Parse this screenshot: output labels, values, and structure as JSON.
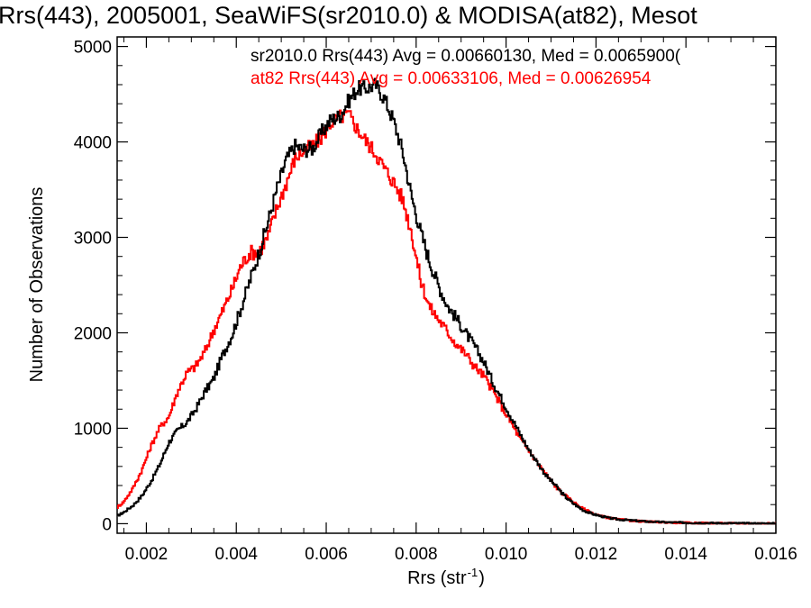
{
  "chart_data": {
    "type": "line",
    "title": "Rrs(443), 2005001, SeaWiFS(sr2010.0) & MODISA(at82), Mesot",
    "xlabel": "Rrs (str",
    "xlabel_sup": "-1",
    "xlabel_close": ")",
    "ylabel": "Number of Observations",
    "xlim": [
      0.00135,
      0.016
    ],
    "ylim": [
      -100,
      5100
    ],
    "xticks": [
      {
        "v": 0.002,
        "label": "0.002"
      },
      {
        "v": 0.004,
        "label": "0.004"
      },
      {
        "v": 0.006,
        "label": "0.006"
      },
      {
        "v": 0.008,
        "label": "0.008"
      },
      {
        "v": 0.01,
        "label": "0.010"
      },
      {
        "v": 0.012,
        "label": "0.012"
      },
      {
        "v": 0.014,
        "label": "0.014"
      },
      {
        "v": 0.016,
        "label": "0.016"
      }
    ],
    "yticks": [
      {
        "v": 0,
        "label": "0"
      },
      {
        "v": 1000,
        "label": "1000"
      },
      {
        "v": 2000,
        "label": "2000"
      },
      {
        "v": 3000,
        "label": "3000"
      },
      {
        "v": 4000,
        "label": "4000"
      },
      {
        "v": 5000,
        "label": "5000"
      }
    ],
    "annotations": [
      {
        "text": "sr2010.0 Rrs(443) Avg = 0.00660130, Med = 0.0065900(",
        "color": "#000000"
      },
      {
        "text": "at82 Rrs(443) Avg = 0.00633106, Med = 0.00626954",
        "color": "#ff0000"
      }
    ],
    "series": [
      {
        "color": "#000000",
        "x": [
          0.00135,
          0.0015,
          0.0017,
          0.0019,
          0.0021,
          0.0023,
          0.0025,
          0.0027,
          0.0029,
          0.0031,
          0.0033,
          0.0035,
          0.0037,
          0.0039,
          0.0041,
          0.0043,
          0.0045,
          0.0047,
          0.0049,
          0.0051,
          0.0053,
          0.0055,
          0.0057,
          0.0059,
          0.0061,
          0.0063,
          0.0065,
          0.0067,
          0.0069,
          0.0071,
          0.0073,
          0.0075,
          0.0077,
          0.0079,
          0.0081,
          0.0083,
          0.0085,
          0.0087,
          0.0089,
          0.0091,
          0.0093,
          0.0095,
          0.0097,
          0.0099,
          0.0101,
          0.0103,
          0.0105,
          0.0107,
          0.0109,
          0.0111,
          0.0113,
          0.0115,
          0.0117,
          0.0119,
          0.0121,
          0.0123,
          0.0125,
          0.0127,
          0.0129,
          0.0131,
          0.0133,
          0.0135,
          0.0137,
          0.0139,
          0.0141,
          0.0143,
          0.0145,
          0.0147,
          0.0149,
          0.0151,
          0.0153,
          0.0155,
          0.0157,
          0.0159,
          0.016
        ],
        "values": [
          80,
          120,
          190,
          290,
          440,
          620,
          850,
          980,
          1060,
          1200,
          1380,
          1520,
          1770,
          1970,
          2250,
          2540,
          2830,
          3150,
          3500,
          3800,
          3960,
          3920,
          3930,
          4100,
          4230,
          4270,
          4430,
          4560,
          4560,
          4600,
          4450,
          4220,
          3900,
          3430,
          3060,
          2750,
          2490,
          2280,
          2150,
          2000,
          1860,
          1700,
          1490,
          1310,
          1130,
          950,
          780,
          640,
          500,
          400,
          290,
          210,
          145,
          105,
          80,
          58,
          45,
          37,
          30,
          24,
          20,
          16,
          13,
          11,
          9,
          8,
          7,
          6,
          5,
          4,
          4,
          3,
          3,
          2,
          2
        ]
      },
      {
        "color": "#ff0000",
        "x": [
          0.00135,
          0.0015,
          0.0017,
          0.0019,
          0.0021,
          0.0023,
          0.0025,
          0.0027,
          0.0029,
          0.0031,
          0.0033,
          0.0035,
          0.0037,
          0.0039,
          0.0041,
          0.0043,
          0.0045,
          0.0047,
          0.0049,
          0.0051,
          0.0053,
          0.0055,
          0.0057,
          0.0059,
          0.0061,
          0.0063,
          0.0065,
          0.0067,
          0.0069,
          0.0071,
          0.0073,
          0.0075,
          0.0077,
          0.0079,
          0.0081,
          0.0083,
          0.0085,
          0.0087,
          0.0089,
          0.0091,
          0.0093,
          0.0095,
          0.0097,
          0.0099,
          0.0101,
          0.0103,
          0.0105,
          0.0107,
          0.0109,
          0.0111,
          0.0113,
          0.0115,
          0.0117,
          0.0119,
          0.0121,
          0.0123,
          0.0125,
          0.0127,
          0.0129,
          0.0131,
          0.0133,
          0.0135,
          0.0137,
          0.0139,
          0.0141,
          0.0143,
          0.0145,
          0.0147,
          0.0149,
          0.0151,
          0.0153,
          0.0155,
          0.0157,
          0.0159,
          0.016
        ],
        "values": [
          170,
          230,
          370,
          560,
          810,
          1010,
          1120,
          1390,
          1580,
          1650,
          1800,
          2030,
          2230,
          2450,
          2700,
          2840,
          2850,
          3000,
          3300,
          3550,
          3820,
          3910,
          3960,
          4050,
          4200,
          4260,
          4290,
          4130,
          4000,
          3880,
          3720,
          3580,
          3400,
          3050,
          2550,
          2270,
          2140,
          2010,
          1880,
          1780,
          1650,
          1550,
          1400,
          1230,
          1070,
          900,
          770,
          640,
          510,
          390,
          300,
          225,
          160,
          115,
          80,
          60,
          45,
          36,
          28,
          22,
          18,
          15,
          12,
          10,
          8,
          7,
          6,
          5,
          4,
          4,
          3,
          3,
          2,
          2,
          2
        ]
      }
    ]
  }
}
